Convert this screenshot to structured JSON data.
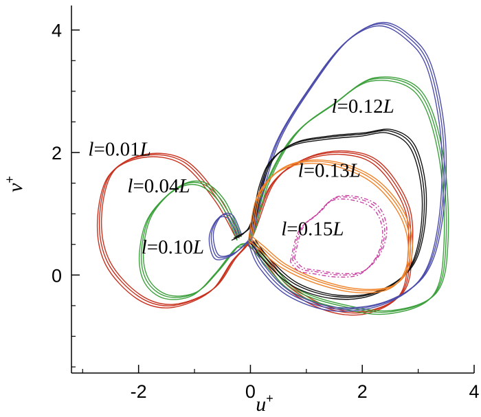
{
  "chart_data": {
    "type": "line",
    "title": "",
    "xlabel": "u",
    "xlabel_sup": "+",
    "ylabel": "v",
    "ylabel_sup": "+",
    "xlim": [
      -3.2,
      4.0
    ],
    "ylim": [
      -1.6,
      4.4
    ],
    "xticks": [
      -2,
      0,
      2,
      4
    ],
    "xtick_labels": [
      "-2",
      "0",
      "2",
      "4"
    ],
    "yticks": [
      0,
      2,
      4
    ],
    "ytick_labels": [
      "0",
      "2",
      "4"
    ],
    "grid": false,
    "legend": "none",
    "series": [
      {
        "color": "#c8321e",
        "dash": "",
        "x": [
          -0.2,
          -0.6,
          -1.2,
          -1.9,
          -2.5,
          -2.7,
          -2.55,
          -2.0,
          -1.4,
          -0.7,
          -0.3,
          0.0,
          0.4,
          1.0,
          1.7,
          2.3,
          2.8,
          2.85,
          2.7,
          2.1,
          1.4,
          0.7,
          0.25,
          -0.05
        ],
        "y": [
          0.6,
          1.25,
          1.85,
          1.95,
          1.65,
          0.9,
          0.2,
          -0.35,
          -0.5,
          -0.25,
          0.25,
          0.6,
          1.5,
          1.9,
          2.0,
          1.8,
          1.1,
          0.3,
          -0.3,
          -0.6,
          -0.55,
          -0.2,
          0.3,
          0.55
        ],
        "label": "l=0.01L",
        "label_x": -2.9,
        "label_y": 1.95
      },
      {
        "color": "#3ca03c",
        "dash": "",
        "x": [
          -0.2,
          -0.5,
          -0.9,
          -1.35,
          -1.8,
          -1.95,
          -1.85,
          -1.5,
          -1.0,
          -0.6,
          -0.25,
          0.0,
          0.3,
          0.8,
          1.5,
          2.2,
          3.0,
          3.4,
          3.5,
          3.3,
          2.5,
          1.6,
          0.8,
          0.3,
          0.0
        ],
        "y": [
          0.6,
          1.2,
          1.5,
          1.4,
          0.95,
          0.35,
          -0.1,
          -0.35,
          -0.3,
          0.05,
          0.45,
          0.6,
          1.5,
          2.3,
          2.8,
          3.2,
          3.0,
          2.0,
          0.6,
          -0.3,
          -0.6,
          -0.5,
          -0.25,
          0.2,
          0.55
        ],
        "label": "l=0.04L",
        "label_x": -2.2,
        "label_y": 1.35
      },
      {
        "color": "#4b4baa",
        "dash": "",
        "x": [
          -0.2,
          -0.35,
          -0.55,
          -0.7,
          -0.6,
          -0.3,
          -0.05,
          0.0,
          0.15,
          0.5,
          1.1,
          1.7,
          2.3,
          2.8,
          3.2,
          3.45,
          3.4,
          3.1,
          2.4,
          1.5,
          0.7,
          0.2,
          0.0
        ],
        "y": [
          0.65,
          0.95,
          0.95,
          0.65,
          0.3,
          0.35,
          0.55,
          0.6,
          1.2,
          2.2,
          3.1,
          3.8,
          4.1,
          3.9,
          3.4,
          2.2,
          0.9,
          0.0,
          -0.45,
          -0.55,
          -0.3,
          0.15,
          0.55
        ],
        "label": "l=0.10L",
        "label_x": -1.95,
        "label_y": 0.35
      },
      {
        "color": "#111111",
        "dash": "",
        "x": [
          -0.3,
          -0.1,
          0.05,
          0.2,
          0.4,
          0.8,
          1.4,
          2.0,
          2.5,
          2.9,
          3.1,
          3.05,
          2.8,
          2.2,
          1.5,
          0.8,
          0.3,
          0.05
        ],
        "y": [
          0.6,
          0.7,
          0.9,
          1.5,
          1.9,
          2.15,
          2.25,
          2.3,
          2.35,
          2.1,
          1.4,
          0.6,
          0.05,
          -0.3,
          -0.35,
          -0.15,
          0.25,
          0.55
        ],
        "label": "l=0.12L",
        "label_x": 1.45,
        "label_y": 2.65
      },
      {
        "color": "#f08228",
        "dash": "",
        "x": [
          0.0,
          0.15,
          0.5,
          1.0,
          1.6,
          2.2,
          2.65,
          2.85,
          2.8,
          2.5,
          1.9,
          1.2,
          0.6,
          0.2,
          0.0
        ],
        "y": [
          0.6,
          1.3,
          1.7,
          1.85,
          1.8,
          1.55,
          1.1,
          0.6,
          0.1,
          -0.2,
          -0.25,
          -0.1,
          0.15,
          0.45,
          0.6
        ],
        "label": "l=0.13L",
        "label_x": 0.85,
        "label_y": 1.6
      },
      {
        "color": "#c83ca0",
        "dash": "6,3,2,3",
        "x": [
          0.75,
          0.9,
          1.2,
          1.5,
          1.9,
          2.25,
          2.4,
          2.3,
          2.0,
          1.6,
          1.2,
          0.9,
          0.75
        ],
        "y": [
          0.25,
          0.75,
          1.0,
          1.25,
          1.25,
          1.1,
          0.75,
          0.35,
          0.05,
          0.0,
          0.05,
          0.1,
          0.25
        ],
        "label": "l=0.15L",
        "label_x": 0.55,
        "label_y": 0.65
      }
    ]
  }
}
